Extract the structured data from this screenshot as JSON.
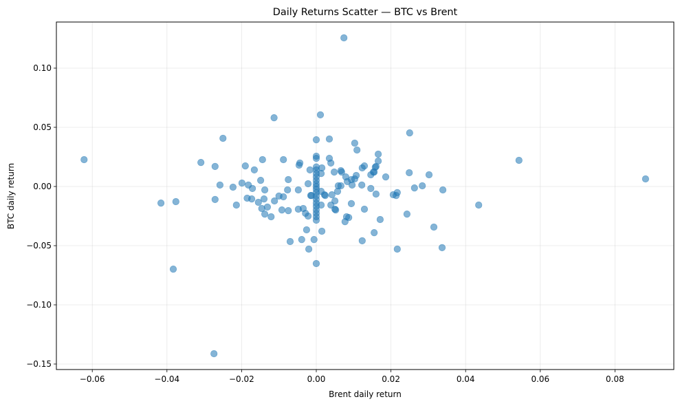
{
  "chart_data": {
    "type": "scatter",
    "title": "Daily Returns Scatter — BTC vs Brent",
    "xlabel": "Brent daily return",
    "ylabel": "BTC daily return",
    "xlim": [
      -0.0695,
      0.0953
    ],
    "ylim": [
      -0.1542,
      0.1386
    ],
    "xticks": [
      -0.06,
      -0.04,
      -0.02,
      0.0,
      0.02,
      0.04,
      0.06,
      0.08
    ],
    "xtick_labels": [
      "−0.06",
      "−0.04",
      "−0.02",
      "0.00",
      "0.02",
      "0.04",
      "0.06",
      "0.08"
    ],
    "yticks": [
      -0.15,
      -0.1,
      -0.05,
      0.0,
      0.05,
      0.1
    ],
    "ytick_labels": [
      "−0.15",
      "−0.10",
      "−0.05",
      "0.00",
      "0.05",
      "0.10"
    ],
    "grid": true,
    "legend": null,
    "marker_color": "#1f77b4",
    "marker_alpha": 0.55,
    "series": [
      {
        "name": "BTC vs Brent",
        "points": [
          [
            -0.0622,
            0.0227
          ],
          [
            -0.0416,
            -0.014
          ],
          [
            -0.0376,
            -0.0128
          ],
          [
            -0.0383,
            -0.0698
          ],
          [
            -0.0274,
            -0.1413
          ],
          [
            0.0074,
            0.1256
          ],
          [
            -0.025,
            0.0407
          ],
          [
            -0.0309,
            0.0203
          ],
          [
            -0.0271,
            0.0169
          ],
          [
            -0.0258,
            0.0012
          ],
          [
            -0.0271,
            -0.011
          ],
          [
            -0.0223,
            -0.0006
          ],
          [
            -0.0214,
            -0.0157
          ],
          [
            -0.0199,
            0.0029
          ],
          [
            -0.019,
            0.0174
          ],
          [
            -0.0182,
            0.0012
          ],
          [
            -0.0171,
            -0.0017
          ],
          [
            -0.0166,
            0.014
          ],
          [
            -0.0185,
            -0.0099
          ],
          [
            -0.0173,
            -0.0105
          ],
          [
            -0.0144,
            0.0227
          ],
          [
            -0.0149,
            0.0052
          ],
          [
            -0.0138,
            -0.0029
          ],
          [
            -0.014,
            -0.0105
          ],
          [
            -0.0155,
            -0.0134
          ],
          [
            -0.0146,
            -0.0186
          ],
          [
            -0.0131,
            -0.0174
          ],
          [
            -0.0138,
            -0.0233
          ],
          [
            -0.0121,
            -0.0256
          ],
          [
            -0.0112,
            -0.0122
          ],
          [
            -0.01,
            -0.0081
          ],
          [
            -0.0088,
            -0.0087
          ],
          [
            -0.0088,
            0.0227
          ],
          [
            -0.0075,
            0.0058
          ],
          [
            -0.0077,
            -0.0029
          ],
          [
            -0.0092,
            -0.0198
          ],
          [
            -0.0075,
            -0.0204
          ],
          [
            -0.0044,
            0.0198
          ],
          [
            -0.0046,
            0.018
          ],
          [
            -0.0048,
            -0.0029
          ],
          [
            -0.0048,
            -0.0192
          ],
          [
            -0.0035,
            -0.0186
          ],
          [
            -0.0026,
            -0.0366
          ],
          [
            -0.007,
            -0.0465
          ],
          [
            -0.0039,
            -0.0448
          ],
          [
            -0.0022,
            0.0023
          ],
          [
            -0.0017,
            0.014
          ],
          [
            -0.0015,
            -0.0076
          ],
          [
            -0.0029,
            -0.0227
          ],
          [
            -0.0022,
            -0.025
          ],
          [
            -0.0113,
            0.0581
          ],
          [
            -0.0006,
            -0.0448
          ],
          [
            -0.002,
            -0.0529
          ],
          [
            -0.0013,
            -0.0076
          ],
          [
            0.0,
            0.0395
          ],
          [
            0.0,
            0.0256
          ],
          [
            0.0,
            0.0238
          ],
          [
            0.0,
            0.0165
          ],
          [
            0.0,
            0.014
          ],
          [
            0.0,
            0.011
          ],
          [
            0.0,
            0.0081
          ],
          [
            0.0,
            0.0052
          ],
          [
            0.0,
            0.0023
          ],
          [
            0.0,
            0.0
          ],
          [
            0.0,
            -0.0023
          ],
          [
            0.0,
            -0.0052
          ],
          [
            0.0,
            -0.0081
          ],
          [
            0.0,
            -0.011
          ],
          [
            0.0,
            -0.014
          ],
          [
            0.0,
            -0.0168
          ],
          [
            0.0,
            -0.0198
          ],
          [
            0.0,
            -0.0227
          ],
          [
            0.0,
            -0.0256
          ],
          [
            0.0,
            -0.0285
          ],
          [
            0.0,
            -0.0651
          ],
          [
            0.0011,
            0.0605
          ],
          [
            0.0035,
            0.0401
          ],
          [
            0.0035,
            0.0238
          ],
          [
            0.0039,
            0.0198
          ],
          [
            0.0103,
            0.0366
          ],
          [
            0.0109,
            0.0308
          ],
          [
            0.0015,
            0.0157
          ],
          [
            0.0013,
            0.011
          ],
          [
            0.0048,
            0.0122
          ],
          [
            0.0066,
            0.0134
          ],
          [
            0.0068,
            0.0122
          ],
          [
            0.0079,
            0.0081
          ],
          [
            0.0083,
            0.0041
          ],
          [
            0.0094,
            0.0058
          ],
          [
            0.0103,
            0.0064
          ],
          [
            0.0107,
            0.0093
          ],
          [
            0.0096,
            0.0012
          ],
          [
            0.0122,
            0.0012
          ],
          [
            0.0123,
            0.0157
          ],
          [
            0.0129,
            0.0174
          ],
          [
            0.0146,
            0.0099
          ],
          [
            0.0153,
            0.0122
          ],
          [
            0.0158,
            0.0163
          ],
          [
            0.0059,
            0.0006
          ],
          [
            0.0066,
            0.0006
          ],
          [
            0.0057,
            -0.0041
          ],
          [
            0.0042,
            -0.007
          ],
          [
            0.0022,
            -0.007
          ],
          [
            0.0013,
            -0.0041
          ],
          [
            0.0146,
            -0.0017
          ],
          [
            0.016,
            -0.0064
          ],
          [
            0.0024,
            -0.0076
          ],
          [
            0.0013,
            -0.0157
          ],
          [
            0.0039,
            -0.0157
          ],
          [
            0.005,
            -0.0122
          ],
          [
            0.005,
            -0.0192
          ],
          [
            0.0052,
            -0.0198
          ],
          [
            0.0094,
            -0.0145
          ],
          [
            0.0129,
            -0.0192
          ],
          [
            0.0081,
            -0.0256
          ],
          [
            0.0087,
            -0.0262
          ],
          [
            0.0077,
            -0.0297
          ],
          [
            0.0171,
            -0.0279
          ],
          [
            0.0155,
            -0.039
          ],
          [
            0.0123,
            -0.0459
          ],
          [
            0.0015,
            -0.0378
          ],
          [
            0.0217,
            -0.0529
          ],
          [
            0.0206,
            -0.007
          ],
          [
            0.0214,
            -0.0076
          ],
          [
            0.025,
            0.0453
          ],
          [
            0.0166,
            0.0273
          ],
          [
            0.0166,
            0.0215
          ],
          [
            0.016,
            0.0169
          ],
          [
            0.0155,
            0.0122
          ],
          [
            0.0186,
            0.0081
          ],
          [
            0.0249,
            0.0116
          ],
          [
            0.0302,
            0.0099
          ],
          [
            0.0263,
            -0.0012
          ],
          [
            0.0284,
            0.0006
          ],
          [
            0.0339,
            -0.0029
          ],
          [
            0.0217,
            -0.0052
          ],
          [
            0.0243,
            -0.0233
          ],
          [
            0.0315,
            -0.0343
          ],
          [
            0.0543,
            0.0221
          ],
          [
            0.0882,
            0.0064
          ],
          [
            0.0435,
            -0.0157
          ],
          [
            0.0337,
            -0.0517
          ]
        ]
      }
    ]
  }
}
